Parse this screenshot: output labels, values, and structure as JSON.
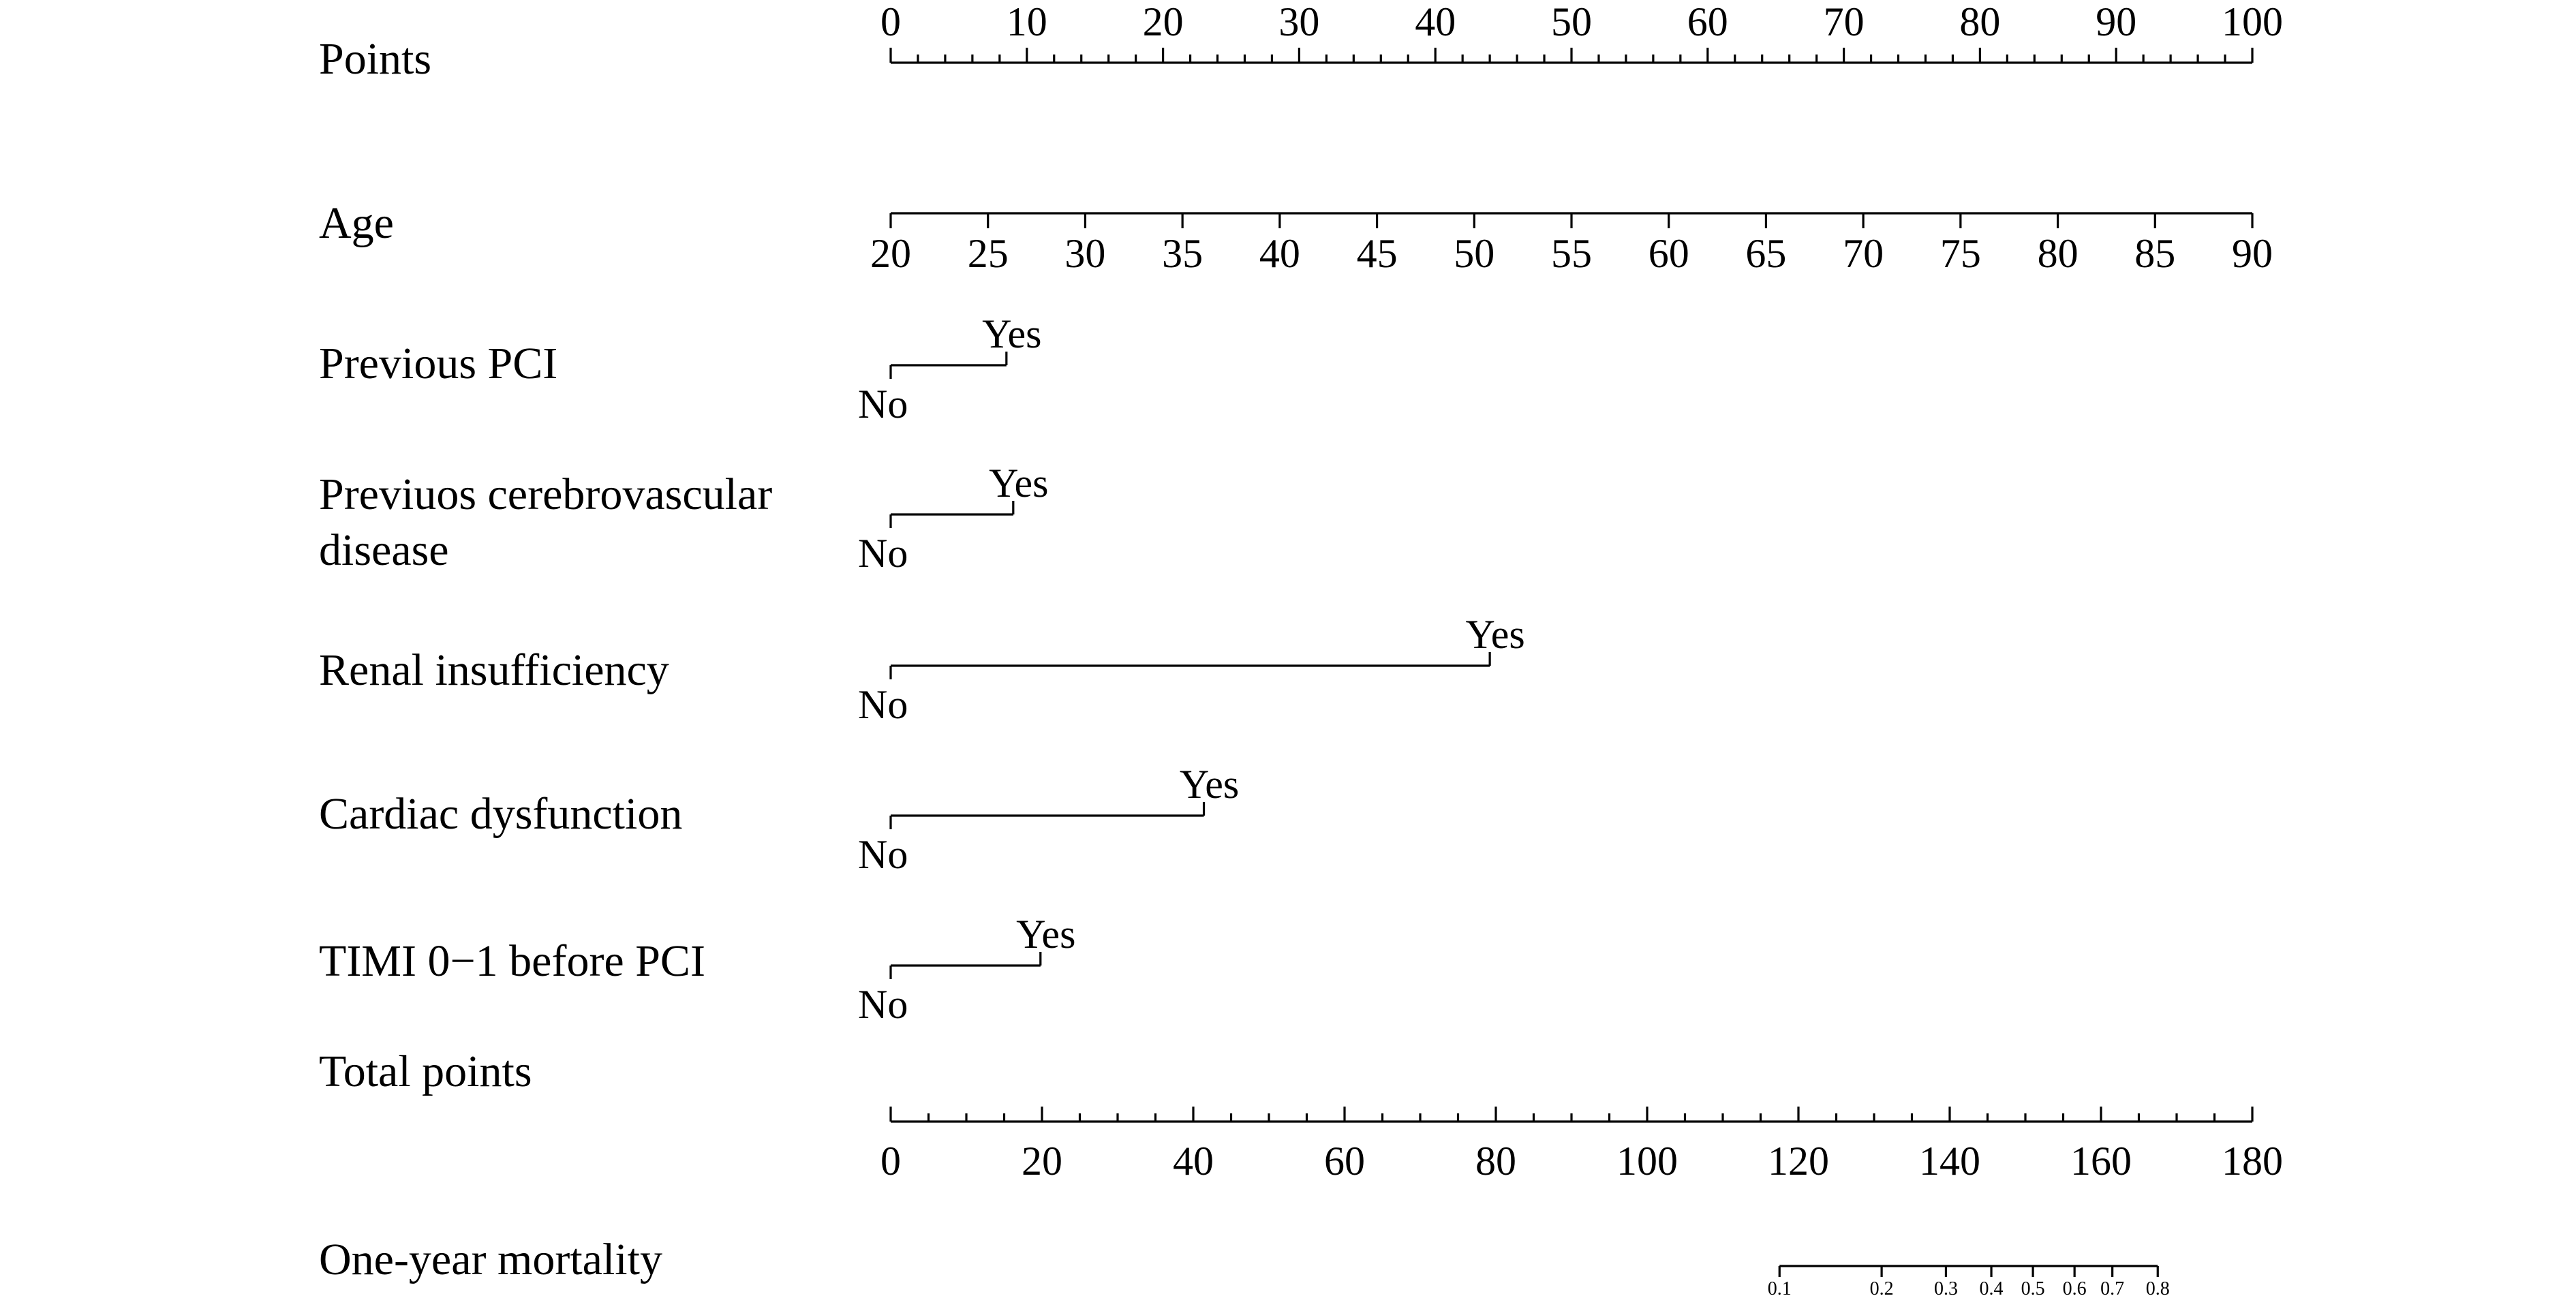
{
  "chart_data": {
    "type": "nomogram",
    "rows": [
      {
        "label": "Points",
        "kind": "points",
        "range": [
          0,
          100
        ],
        "major_ticks": [
          0,
          10,
          20,
          30,
          40,
          50,
          60,
          70,
          80,
          90,
          100
        ],
        "minor_step": 2
      },
      {
        "label": "Age",
        "kind": "continuous",
        "range": [
          20,
          90
        ],
        "points_range": [
          0,
          100
        ],
        "ticks": [
          20,
          25,
          30,
          35,
          40,
          45,
          50,
          55,
          60,
          65,
          70,
          75,
          80,
          85,
          90
        ]
      },
      {
        "label": "Previous PCI",
        "kind": "categorical",
        "levels": [
          {
            "name": "No",
            "points": 0
          },
          {
            "name": "Yes",
            "points": 8.5
          }
        ]
      },
      {
        "label_lines": [
          "Previuos cerebrovascular",
          "disease"
        ],
        "kind": "categorical",
        "levels": [
          {
            "name": "No",
            "points": 0
          },
          {
            "name": "Yes",
            "points": 9
          }
        ]
      },
      {
        "label": "Renal insufficiency",
        "kind": "categorical",
        "levels": [
          {
            "name": "No",
            "points": 0
          },
          {
            "name": "Yes",
            "points": 44
          }
        ]
      },
      {
        "label": "Cardiac dysfunction",
        "kind": "categorical",
        "levels": [
          {
            "name": "No",
            "points": 0
          },
          {
            "name": "Yes",
            "points": 23
          }
        ]
      },
      {
        "label": "TIMI 0−1 before PCI",
        "kind": "categorical",
        "levels": [
          {
            "name": "No",
            "points": 0
          },
          {
            "name": "Yes",
            "points": 11
          }
        ]
      },
      {
        "label": "Total points",
        "kind": "total",
        "range": [
          0,
          180
        ],
        "major_ticks": [
          0,
          20,
          40,
          60,
          80,
          100,
          120,
          140,
          160,
          180
        ],
        "minor_step": 5
      },
      {
        "label": "One-year mortality",
        "kind": "probability",
        "ticks": [
          {
            "label": "0.1",
            "total_points": 117.5
          },
          {
            "label": "0.2",
            "total_points": 131
          },
          {
            "label": "0.3",
            "total_points": 139.5
          },
          {
            "label": "0.4",
            "total_points": 145.5
          },
          {
            "label": "0.5",
            "total_points": 151
          },
          {
            "label": "0.6",
            "total_points": 156.5
          },
          {
            "label": "0.7",
            "total_points": 161.5
          },
          {
            "label": "0.8",
            "total_points": 167.5
          }
        ]
      }
    ]
  }
}
